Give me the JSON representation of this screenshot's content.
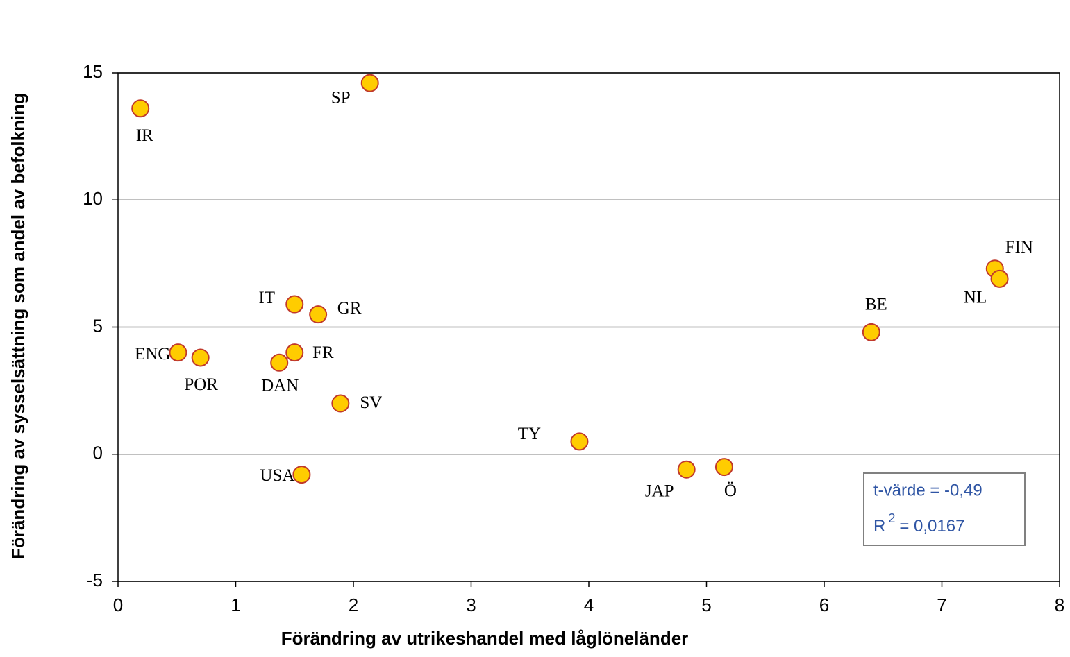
{
  "chart_data": {
    "type": "scatter",
    "x_label": "Förändring av utrikeshandel med låglöneländer",
    "y_label": "Förändring av sysselsättning som andel av befolkning",
    "labels": [
      "IR",
      "SP",
      "IT",
      "GR",
      "ENG",
      "POR",
      "FR",
      "DAN",
      "SV",
      "TY",
      "USA",
      "JAP",
      "Ö",
      "BE",
      "FIN",
      "NL"
    ],
    "x": [
      0.19,
      2.14,
      1.5,
      1.7,
      0.51,
      0.7,
      1.5,
      1.37,
      1.89,
      3.92,
      1.56,
      4.83,
      5.15,
      6.4,
      7.45,
      7.49
    ],
    "y": [
      13.6,
      14.6,
      5.9,
      5.5,
      4.0,
      3.8,
      4.0,
      3.6,
      2.0,
      0.5,
      -0.8,
      -0.6,
      -0.5,
      4.8,
      7.3,
      6.9
    ],
    "color": "#ffcc00",
    "edge_color": "#c0392b",
    "xlim": [
      0,
      8
    ],
    "xticks": [
      0,
      1,
      2,
      3,
      4,
      5,
      6,
      7,
      8
    ],
    "ylim": [
      -5,
      15
    ],
    "yticks": [
      -5,
      0,
      5,
      10,
      15
    ],
    "grid": true,
    "annotation": {
      "t_value": "t-värde = -0,49",
      "r2_base": "R",
      "r2_sup": "2",
      "r2_rest": "= 0,0167"
    }
  }
}
